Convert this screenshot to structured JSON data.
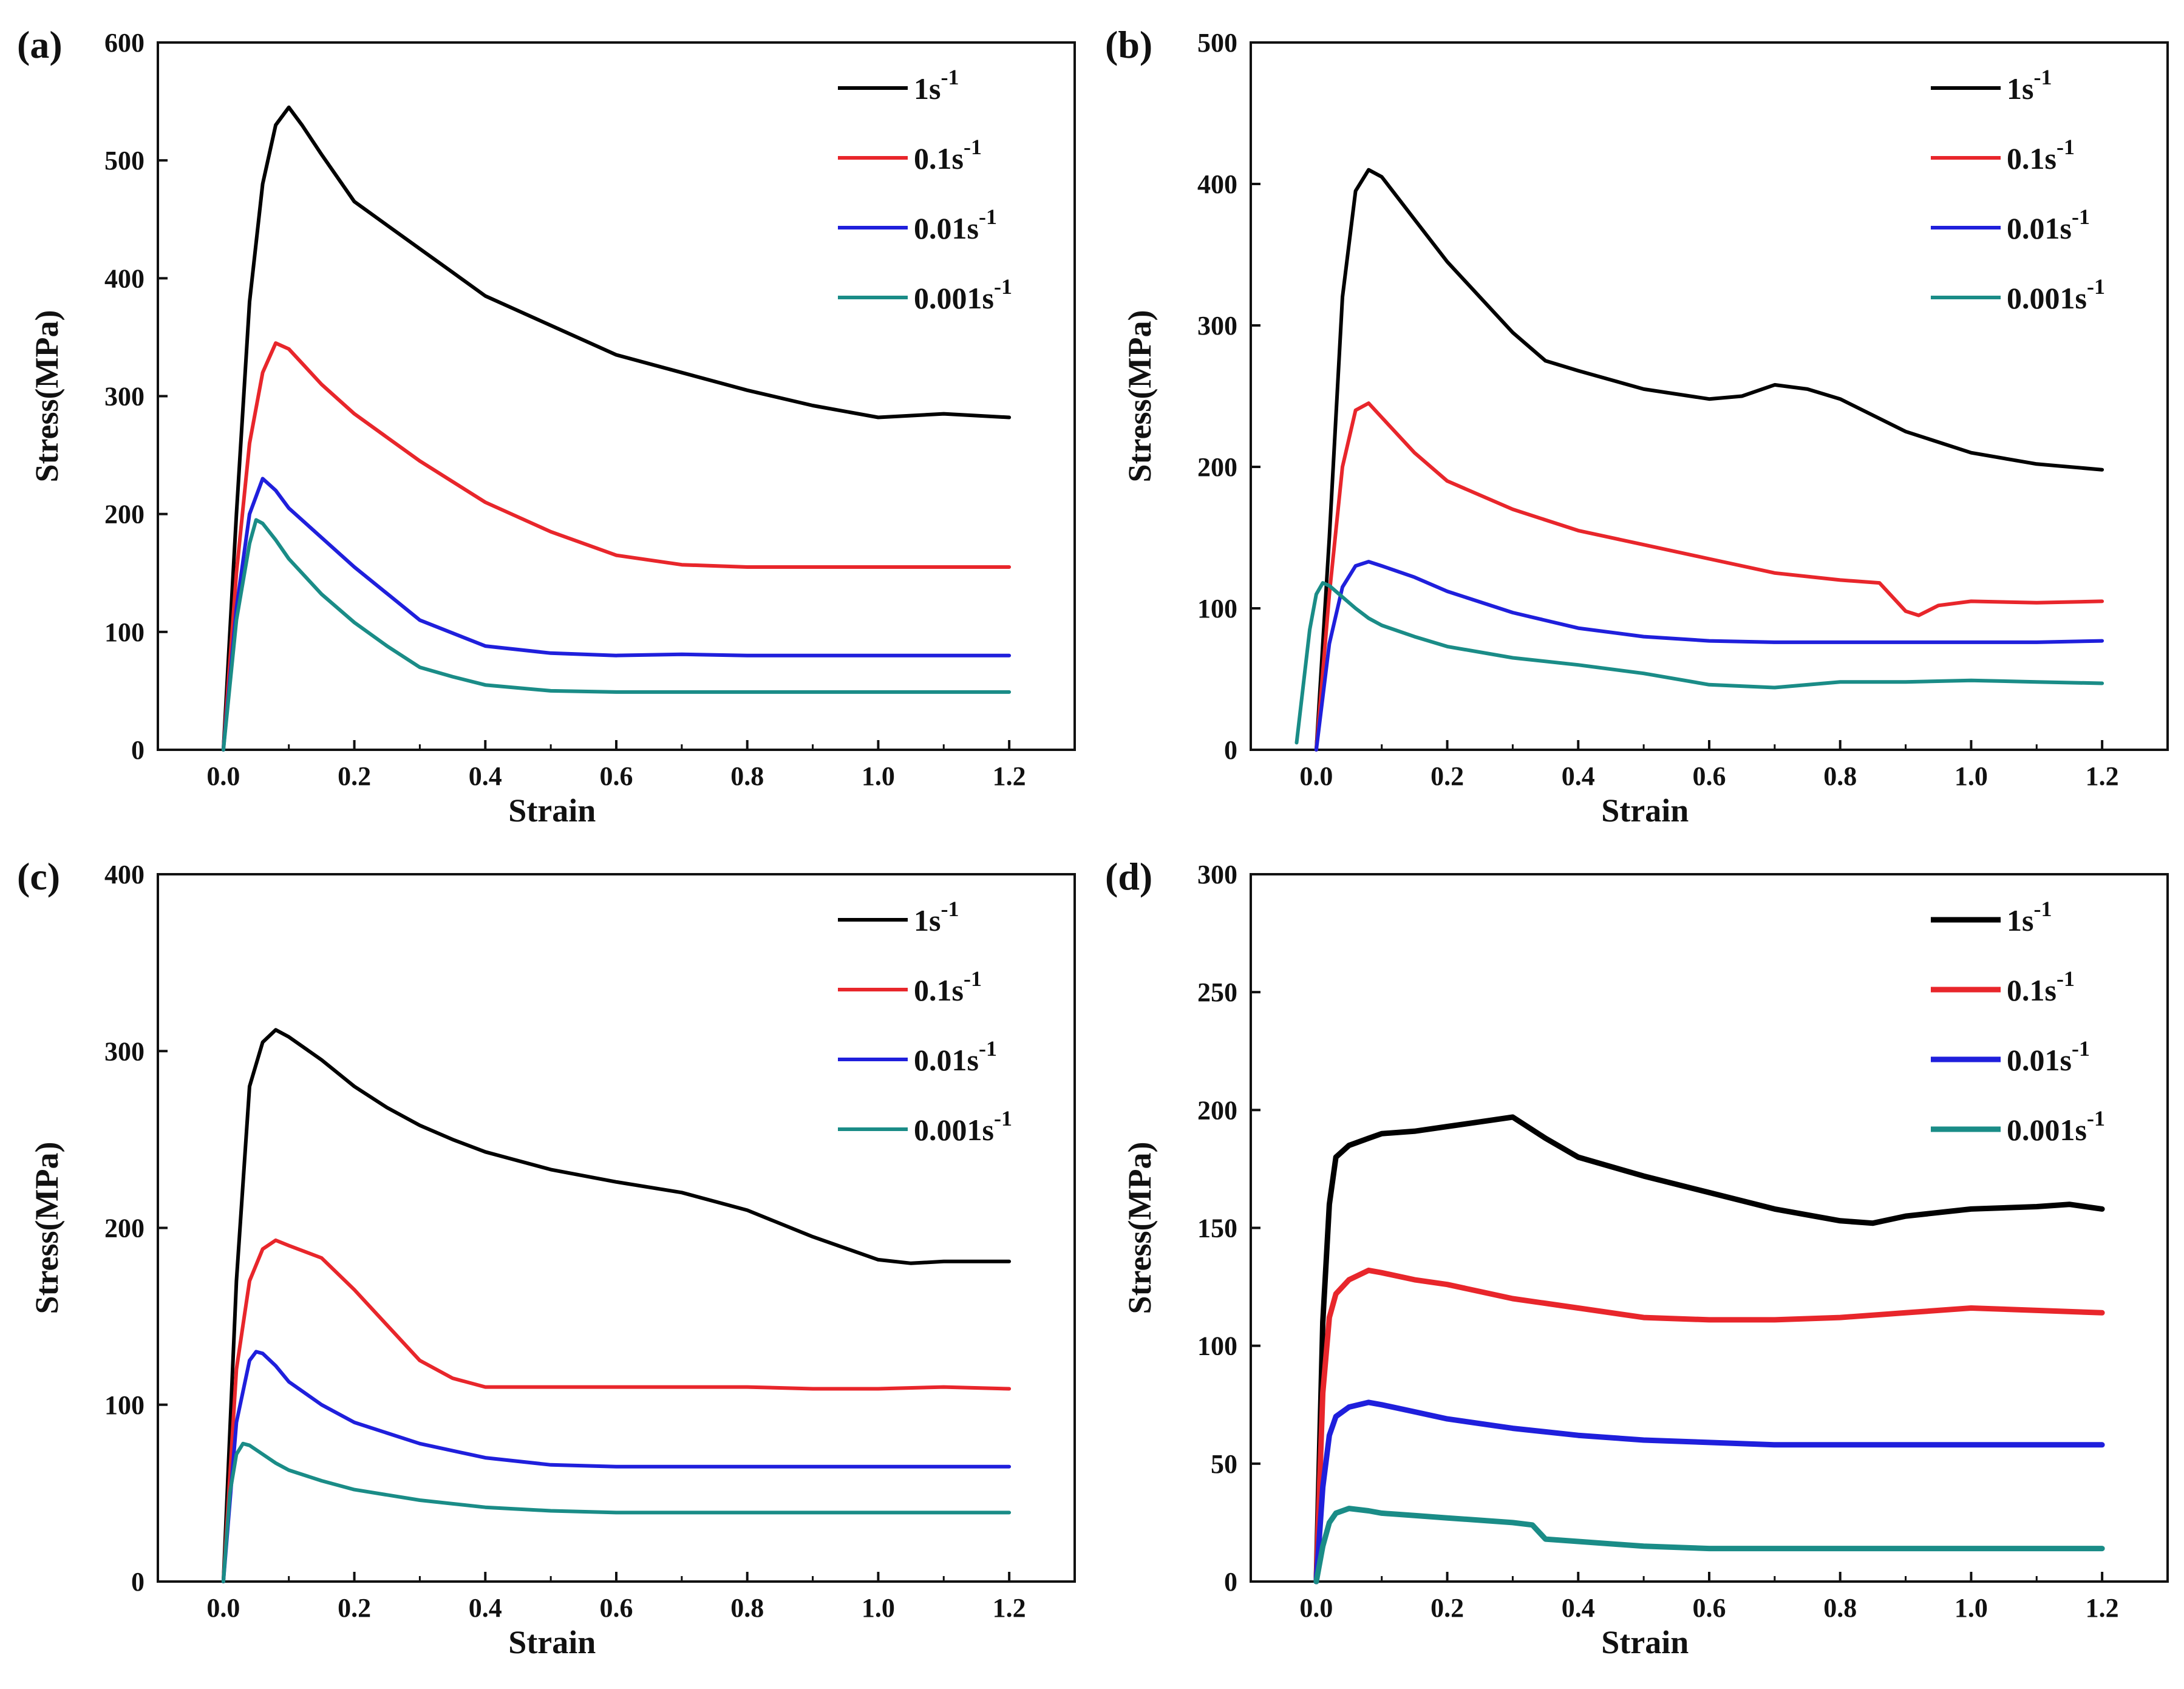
{
  "figure": {
    "background": "#ffffff"
  },
  "chart_data": [
    {
      "type": "line",
      "panel_label": "(a)",
      "xlabel": "Strain",
      "ylabel": "Stress(MPa)",
      "xlim": [
        -0.1,
        1.3
      ],
      "ylim": [
        0,
        600
      ],
      "xticks": [
        0.0,
        0.2,
        0.4,
        0.6,
        0.8,
        1.0,
        1.2
      ],
      "xtick_labels": [
        "0.0",
        "0.2",
        "0.4",
        "0.6",
        "0.8",
        "1.0",
        "1.2"
      ],
      "yticks": [
        0,
        100,
        200,
        300,
        400,
        500,
        600
      ],
      "ytick_labels": [
        "0",
        "100",
        "200",
        "300",
        "400",
        "500",
        "600"
      ],
      "legend_position": "top-right",
      "series": [
        {
          "name": "1s",
          "sup": "-1",
          "color": "#000000",
          "x": [
            0.0,
            0.02,
            0.04,
            0.06,
            0.08,
            0.1,
            0.12,
            0.15,
            0.2,
            0.25,
            0.3,
            0.35,
            0.4,
            0.5,
            0.6,
            0.7,
            0.8,
            0.9,
            1.0,
            1.1,
            1.2
          ],
          "y": [
            0,
            200,
            380,
            480,
            530,
            545,
            530,
            505,
            465,
            445,
            425,
            405,
            385,
            360,
            335,
            320,
            305,
            292,
            282,
            285,
            282
          ]
        },
        {
          "name": "0.1s",
          "sup": "-1",
          "color": "#e8262b",
          "x": [
            0.0,
            0.02,
            0.04,
            0.06,
            0.08,
            0.1,
            0.15,
            0.2,
            0.3,
            0.4,
            0.5,
            0.6,
            0.7,
            0.8,
            0.9,
            1.0,
            1.1,
            1.2
          ],
          "y": [
            0,
            150,
            260,
            320,
            345,
            340,
            310,
            285,
            245,
            210,
            185,
            165,
            157,
            155,
            155,
            155,
            155,
            155
          ]
        },
        {
          "name": "0.01s",
          "sup": "-1",
          "color": "#1f1fdc",
          "x": [
            0.0,
            0.02,
            0.04,
            0.06,
            0.08,
            0.1,
            0.15,
            0.2,
            0.3,
            0.4,
            0.5,
            0.6,
            0.7,
            0.8,
            0.9,
            1.0,
            1.1,
            1.2
          ],
          "y": [
            0,
            120,
            200,
            230,
            220,
            205,
            180,
            155,
            110,
            88,
            82,
            80,
            81,
            80,
            80,
            80,
            80,
            80
          ]
        },
        {
          "name": "0.001s",
          "sup": "-1",
          "color": "#1a8c87",
          "x": [
            0.0,
            0.02,
            0.04,
            0.05,
            0.06,
            0.08,
            0.1,
            0.15,
            0.2,
            0.25,
            0.3,
            0.35,
            0.4,
            0.5,
            0.6,
            0.7,
            0.8,
            0.9,
            1.0,
            1.1,
            1.2
          ],
          "y": [
            0,
            110,
            175,
            195,
            192,
            178,
            162,
            132,
            108,
            88,
            70,
            62,
            55,
            50,
            49,
            49,
            49,
            49,
            49,
            49,
            49
          ]
        }
      ]
    },
    {
      "type": "line",
      "panel_label": "(b)",
      "xlabel": "Strain",
      "ylabel": "Stress(MPa)",
      "xlim": [
        -0.1,
        1.3
      ],
      "ylim": [
        0,
        500
      ],
      "xticks": [
        0.0,
        0.2,
        0.4,
        0.6,
        0.8,
        1.0,
        1.2
      ],
      "xtick_labels": [
        "0.0",
        "0.2",
        "0.4",
        "0.6",
        "0.8",
        "1.0",
        "1.2"
      ],
      "yticks": [
        0,
        100,
        200,
        300,
        400,
        500
      ],
      "ytick_labels": [
        "0",
        "100",
        "200",
        "300",
        "400",
        "500"
      ],
      "legend_position": "top-right",
      "series": [
        {
          "name": "1s",
          "sup": "-1",
          "color": "#000000",
          "x": [
            0.0,
            0.02,
            0.04,
            0.06,
            0.08,
            0.1,
            0.15,
            0.2,
            0.3,
            0.35,
            0.4,
            0.5,
            0.6,
            0.65,
            0.7,
            0.75,
            0.8,
            0.9,
            1.0,
            1.1,
            1.2
          ],
          "y": [
            0,
            150,
            320,
            395,
            410,
            405,
            375,
            345,
            295,
            275,
            268,
            255,
            248,
            250,
            258,
            255,
            248,
            225,
            210,
            202,
            198
          ]
        },
        {
          "name": "0.1s",
          "sup": "-1",
          "color": "#e8262b",
          "x": [
            0.0,
            0.02,
            0.04,
            0.06,
            0.08,
            0.1,
            0.15,
            0.2,
            0.3,
            0.4,
            0.5,
            0.6,
            0.7,
            0.8,
            0.86,
            0.9,
            0.92,
            0.95,
            1.0,
            1.1,
            1.2
          ],
          "y": [
            0,
            110,
            200,
            240,
            245,
            235,
            210,
            190,
            170,
            155,
            145,
            135,
            125,
            120,
            118,
            98,
            95,
            102,
            105,
            104,
            105
          ]
        },
        {
          "name": "0.01s",
          "sup": "-1",
          "color": "#1f1fdc",
          "x": [
            0.0,
            0.02,
            0.04,
            0.06,
            0.08,
            0.1,
            0.15,
            0.2,
            0.3,
            0.4,
            0.5,
            0.6,
            0.7,
            0.8,
            0.9,
            1.0,
            1.1,
            1.2
          ],
          "y": [
            0,
            75,
            115,
            130,
            133,
            130,
            122,
            112,
            97,
            86,
            80,
            77,
            76,
            76,
            76,
            76,
            76,
            77
          ]
        },
        {
          "name": "0.001s",
          "sup": "-1",
          "color": "#1a8c87",
          "x": [
            -0.03,
            -0.02,
            -0.01,
            0.0,
            0.01,
            0.02,
            0.04,
            0.06,
            0.08,
            0.1,
            0.15,
            0.2,
            0.3,
            0.4,
            0.5,
            0.6,
            0.7,
            0.8,
            0.9,
            1.0,
            1.1,
            1.2
          ],
          "y": [
            5,
            45,
            85,
            110,
            118,
            116,
            108,
            100,
            93,
            88,
            80,
            73,
            65,
            60,
            54,
            46,
            44,
            48,
            48,
            49,
            48,
            47
          ]
        }
      ]
    },
    {
      "type": "line",
      "panel_label": "(c)",
      "xlabel": "Strain",
      "ylabel": "Stress(MPa)",
      "xlim": [
        -0.1,
        1.3
      ],
      "ylim": [
        0,
        400
      ],
      "xticks": [
        0.0,
        0.2,
        0.4,
        0.6,
        0.8,
        1.0,
        1.2
      ],
      "xtick_labels": [
        "0.0",
        "0.2",
        "0.4",
        "0.6",
        "0.8",
        "1.0",
        "1.2"
      ],
      "yticks": [
        0,
        100,
        200,
        300,
        400
      ],
      "ytick_labels": [
        "0",
        "100",
        "200",
        "300",
        "400"
      ],
      "legend_position": "top-right",
      "series": [
        {
          "name": "1s",
          "sup": "-1",
          "color": "#000000",
          "x": [
            0.0,
            0.02,
            0.04,
            0.06,
            0.08,
            0.1,
            0.15,
            0.2,
            0.25,
            0.3,
            0.35,
            0.4,
            0.5,
            0.6,
            0.7,
            0.8,
            0.9,
            1.0,
            1.05,
            1.1,
            1.2
          ],
          "y": [
            0,
            170,
            280,
            305,
            312,
            308,
            295,
            280,
            268,
            258,
            250,
            243,
            233,
            226,
            220,
            210,
            195,
            182,
            180,
            181,
            181
          ]
        },
        {
          "name": "0.1s",
          "sup": "-1",
          "color": "#e8262b",
          "x": [
            0.0,
            0.02,
            0.04,
            0.06,
            0.08,
            0.1,
            0.15,
            0.2,
            0.25,
            0.3,
            0.35,
            0.4,
            0.5,
            0.6,
            0.7,
            0.8,
            0.9,
            1.0,
            1.1,
            1.2
          ],
          "y": [
            0,
            120,
            170,
            188,
            193,
            190,
            183,
            165,
            145,
            125,
            115,
            110,
            110,
            110,
            110,
            110,
            109,
            109,
            110,
            109
          ]
        },
        {
          "name": "0.01s",
          "sup": "-1",
          "color": "#1f1fdc",
          "x": [
            0.0,
            0.02,
            0.04,
            0.05,
            0.06,
            0.08,
            0.1,
            0.15,
            0.2,
            0.3,
            0.4,
            0.5,
            0.6,
            0.7,
            0.8,
            0.9,
            1.0,
            1.1,
            1.2
          ],
          "y": [
            0,
            90,
            125,
            130,
            129,
            122,
            113,
            100,
            90,
            78,
            70,
            66,
            65,
            65,
            65,
            65,
            65,
            65,
            65
          ]
        },
        {
          "name": "0.001s",
          "sup": "-1",
          "color": "#1a8c87",
          "x": [
            0.0,
            0.01,
            0.02,
            0.03,
            0.04,
            0.06,
            0.08,
            0.1,
            0.15,
            0.2,
            0.3,
            0.4,
            0.5,
            0.6,
            0.7,
            0.8,
            0.9,
            1.0,
            1.1,
            1.2
          ],
          "y": [
            0,
            50,
            72,
            78,
            77,
            72,
            67,
            63,
            57,
            52,
            46,
            42,
            40,
            39,
            39,
            39,
            39,
            39,
            39,
            39
          ]
        }
      ]
    },
    {
      "type": "line",
      "panel_label": "(d)",
      "xlabel": "Strain",
      "ylabel": "Stress(MPa)",
      "xlim": [
        -0.1,
        1.3
      ],
      "ylim": [
        0,
        300
      ],
      "xticks": [
        0.0,
        0.2,
        0.4,
        0.6,
        0.8,
        1.0,
        1.2
      ],
      "xtick_labels": [
        "0.0",
        "0.2",
        "0.4",
        "0.6",
        "0.8",
        "1.0",
        "1.2"
      ],
      "yticks": [
        0,
        50,
        100,
        150,
        200,
        250,
        300
      ],
      "ytick_labels": [
        "0",
        "50",
        "100",
        "150",
        "200",
        "250",
        "300"
      ],
      "legend_position": "top-right",
      "series": [
        {
          "name": "1s",
          "sup": "-1",
          "color": "#000000",
          "x": [
            0.0,
            0.01,
            0.02,
            0.03,
            0.05,
            0.08,
            0.1,
            0.15,
            0.2,
            0.25,
            0.3,
            0.35,
            0.4,
            0.5,
            0.6,
            0.7,
            0.8,
            0.85,
            0.9,
            1.0,
            1.1,
            1.15,
            1.2
          ],
          "y": [
            0,
            110,
            160,
            180,
            185,
            188,
            190,
            191,
            193,
            195,
            197,
            188,
            180,
            172,
            165,
            158,
            153,
            152,
            155,
            158,
            159,
            160,
            158
          ]
        },
        {
          "name": "0.1s",
          "sup": "-1",
          "color": "#e8262b",
          "x": [
            0.0,
            0.01,
            0.02,
            0.03,
            0.05,
            0.08,
            0.1,
            0.15,
            0.2,
            0.3,
            0.4,
            0.5,
            0.6,
            0.7,
            0.8,
            0.9,
            1.0,
            1.1,
            1.2
          ],
          "y": [
            0,
            80,
            112,
            122,
            128,
            132,
            131,
            128,
            126,
            120,
            116,
            112,
            111,
            111,
            112,
            114,
            116,
            115,
            114
          ]
        },
        {
          "name": "0.01s",
          "sup": "-1",
          "color": "#1f1fdc",
          "x": [
            0.0,
            0.01,
            0.02,
            0.03,
            0.05,
            0.08,
            0.1,
            0.15,
            0.2,
            0.3,
            0.4,
            0.5,
            0.6,
            0.7,
            0.8,
            0.9,
            1.0,
            1.1,
            1.2
          ],
          "y": [
            0,
            40,
            62,
            70,
            74,
            76,
            75,
            72,
            69,
            65,
            62,
            60,
            59,
            58,
            58,
            58,
            58,
            58,
            58
          ]
        },
        {
          "name": "0.001s",
          "sup": "-1",
          "color": "#1a8c87",
          "x": [
            0.0,
            0.01,
            0.02,
            0.03,
            0.05,
            0.08,
            0.1,
            0.15,
            0.2,
            0.25,
            0.3,
            0.33,
            0.35,
            0.4,
            0.5,
            0.6,
            0.7,
            0.8,
            0.9,
            1.0,
            1.1,
            1.2
          ],
          "y": [
            0,
            15,
            25,
            29,
            31,
            30,
            29,
            28,
            27,
            26,
            25,
            24,
            18,
            17,
            15,
            14,
            14,
            14,
            14,
            14,
            14,
            14
          ]
        }
      ]
    }
  ]
}
